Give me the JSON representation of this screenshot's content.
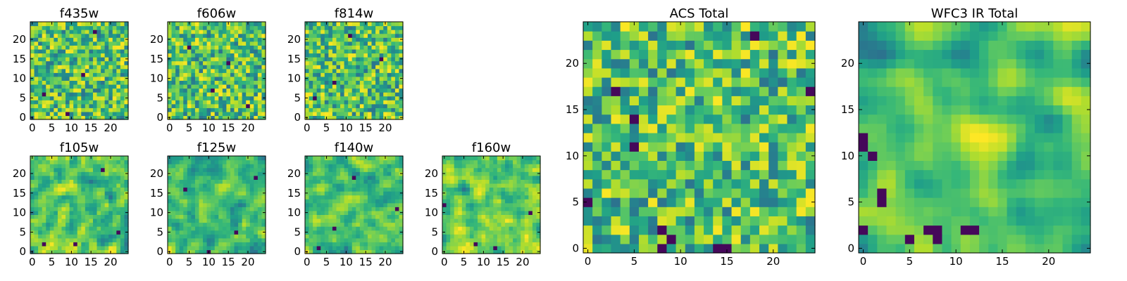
{
  "chart_data": [
    {
      "type": "heatmap",
      "title": "f435w",
      "grid_size": 25,
      "xlim": [
        -0.5,
        24.5
      ],
      "ylim": [
        -0.5,
        24.5
      ],
      "xticks": [
        0,
        5,
        10,
        15,
        20
      ],
      "yticks": [
        0,
        5,
        10,
        15,
        20
      ],
      "colormap": "viridis",
      "pattern_seed": 11,
      "smooth": 0,
      "dark_pixels": [
        [
          9,
          1
        ],
        [
          13,
          11
        ],
        [
          16,
          22
        ],
        [
          3,
          6
        ]
      ]
    },
    {
      "type": "heatmap",
      "title": "f606w",
      "grid_size": 25,
      "xlim": [
        -0.5,
        24.5
      ],
      "ylim": [
        -0.5,
        24.5
      ],
      "xticks": [
        0,
        5,
        10,
        15,
        20
      ],
      "yticks": [
        0,
        5,
        10,
        15,
        20
      ],
      "colormap": "viridis",
      "pattern_seed": 23,
      "smooth": 0,
      "dark_pixels": [
        [
          5,
          18
        ],
        [
          11,
          7
        ],
        [
          20,
          3
        ],
        [
          15,
          14
        ]
      ]
    },
    {
      "type": "heatmap",
      "title": "f814w",
      "grid_size": 25,
      "xlim": [
        -0.5,
        24.5
      ],
      "ylim": [
        -0.5,
        24.5
      ],
      "xticks": [
        0,
        5,
        10,
        15,
        20
      ],
      "yticks": [
        0,
        5,
        10,
        15,
        20
      ],
      "colormap": "viridis",
      "pattern_seed": 37,
      "smooth": 0,
      "dark_pixels": [
        [
          19,
          15
        ],
        [
          2,
          5
        ],
        [
          11,
          21
        ],
        [
          7,
          9
        ]
      ]
    },
    {
      "type": "heatmap",
      "title": "f105w",
      "grid_size": 25,
      "xlim": [
        -0.5,
        24.5
      ],
      "ylim": [
        -0.5,
        24.5
      ],
      "xticks": [
        0,
        5,
        10,
        15,
        20
      ],
      "yticks": [
        0,
        5,
        10,
        15,
        20
      ],
      "colormap": "viridis",
      "pattern_seed": 41,
      "smooth": 1,
      "dark_pixels": [
        [
          11,
          2
        ],
        [
          3,
          2
        ],
        [
          22,
          5
        ],
        [
          18,
          21
        ]
      ]
    },
    {
      "type": "heatmap",
      "title": "f125w",
      "grid_size": 25,
      "xlim": [
        -0.5,
        24.5
      ],
      "ylim": [
        -0.5,
        24.5
      ],
      "xticks": [
        0,
        5,
        10,
        15,
        20
      ],
      "yticks": [
        0,
        5,
        10,
        15,
        20
      ],
      "colormap": "viridis",
      "pattern_seed": 53,
      "smooth": 1,
      "dark_pixels": [
        [
          10,
          0
        ],
        [
          4,
          16
        ],
        [
          22,
          19
        ],
        [
          17,
          5
        ]
      ]
    },
    {
      "type": "heatmap",
      "title": "f140w",
      "grid_size": 25,
      "xlim": [
        -0.5,
        24.5
      ],
      "ylim": [
        -0.5,
        24.5
      ],
      "xticks": [
        0,
        5,
        10,
        15,
        20
      ],
      "yticks": [
        0,
        5,
        10,
        15,
        20
      ],
      "colormap": "viridis",
      "pattern_seed": 67,
      "smooth": 1,
      "dark_pixels": [
        [
          3,
          1
        ],
        [
          23,
          11
        ],
        [
          12,
          19
        ],
        [
          7,
          6
        ]
      ]
    },
    {
      "type": "heatmap",
      "title": "f160w",
      "grid_size": 25,
      "xlim": [
        -0.5,
        24.5
      ],
      "ylim": [
        -0.5,
        24.5
      ],
      "xticks": [
        0,
        5,
        10,
        15,
        20
      ],
      "yticks": [
        0,
        5,
        10,
        15,
        20
      ],
      "colormap": "viridis",
      "pattern_seed": 79,
      "smooth": 1,
      "dark_pixels": [
        [
          8,
          2
        ],
        [
          13,
          1
        ],
        [
          0,
          12
        ],
        [
          22,
          10
        ]
      ]
    },
    {
      "type": "heatmap",
      "title": "ACS Total",
      "grid_size": 25,
      "xlim": [
        -0.5,
        24.5
      ],
      "ylim": [
        -0.5,
        24.5
      ],
      "xticks": [
        0,
        5,
        10,
        15,
        20
      ],
      "yticks": [
        0,
        5,
        10,
        15,
        20
      ],
      "colormap": "viridis",
      "pattern_seed": 97,
      "smooth": 0,
      "dark_pixels": [
        [
          3,
          17
        ],
        [
          18,
          23
        ],
        [
          24,
          17
        ],
        [
          5,
          14
        ],
        [
          5,
          11
        ],
        [
          0,
          5
        ],
        [
          8,
          0
        ],
        [
          9,
          1
        ],
        [
          14,
          0
        ],
        [
          15,
          0
        ],
        [
          8,
          2
        ]
      ]
    },
    {
      "type": "heatmap",
      "title": "WFC3 IR Total",
      "grid_size": 25,
      "xlim": [
        -0.5,
        24.5
      ],
      "ylim": [
        -0.5,
        24.5
      ],
      "xticks": [
        0,
        5,
        10,
        15,
        20
      ],
      "yticks": [
        0,
        5,
        10,
        15,
        20
      ],
      "colormap": "viridis",
      "pattern_seed": 113,
      "smooth": 2,
      "dark_pixels": [
        [
          0,
          11
        ],
        [
          0,
          12
        ],
        [
          1,
          10
        ],
        [
          2,
          5
        ],
        [
          2,
          6
        ],
        [
          7,
          2
        ],
        [
          8,
          1
        ],
        [
          8,
          2
        ],
        [
          11,
          2
        ],
        [
          12,
          2
        ],
        [
          0,
          2
        ],
        [
          5,
          1
        ]
      ]
    }
  ]
}
